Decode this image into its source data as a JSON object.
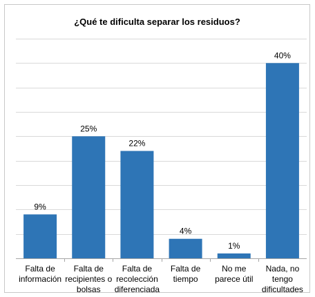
{
  "chart_data": {
    "type": "bar",
    "title": "¿Qué te dificulta separar los residuos?",
    "categories": [
      [
        "Falta de",
        "información"
      ],
      [
        "Falta de",
        "recipientes o",
        "bolsas"
      ],
      [
        "Falta de",
        "recolección",
        "diferenciada"
      ],
      [
        "Falta de",
        "tiempo"
      ],
      [
        "No me",
        "parece útil"
      ],
      [
        "Nada, no",
        "tengo",
        "dificultades"
      ]
    ],
    "values": [
      9,
      25,
      22,
      4,
      1,
      40
    ],
    "data_labels": [
      "9%",
      "25%",
      "22%",
      "4%",
      "1%",
      "40%"
    ],
    "ylim": [
      0,
      45
    ],
    "gridlines": true,
    "bar_color": "#2e75b6",
    "grid_color": "#d9d9d9",
    "axis_color": "#a6a6a6"
  }
}
